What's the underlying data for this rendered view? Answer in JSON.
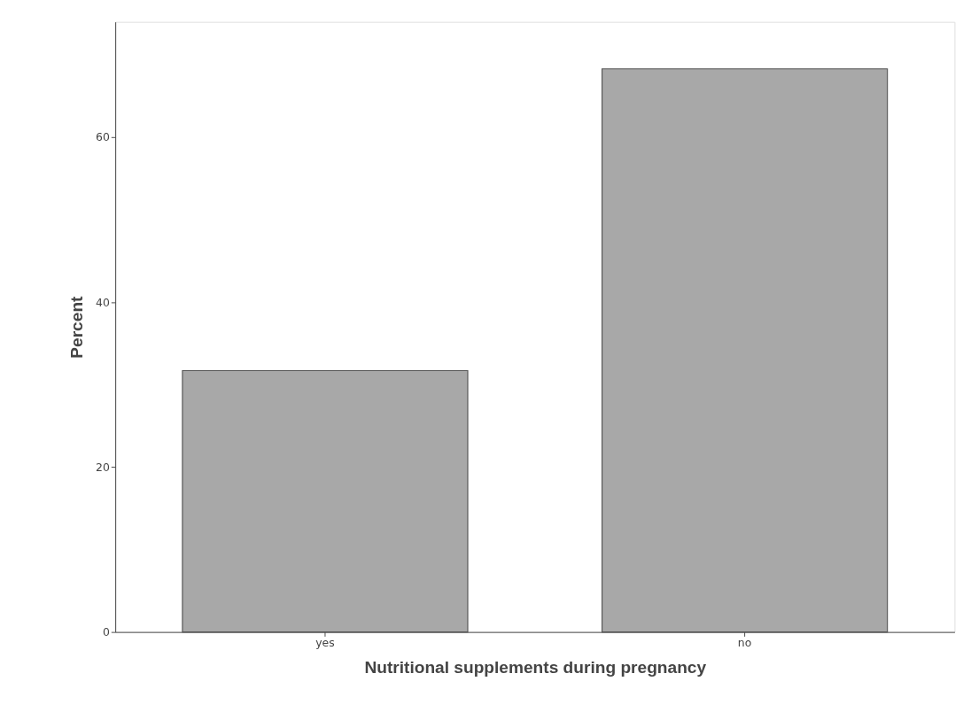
{
  "chart_data": {
    "type": "bar",
    "xlabel": "Nutritional supplements during pregnancy",
    "ylabel": "Percent",
    "categories": [
      "yes",
      "no"
    ],
    "values": [
      31.7,
      68.3
    ],
    "color": "#a8a8a8",
    "ylim": [
      0,
      74
    ],
    "yticks": [
      0,
      20,
      40,
      60
    ],
    "grid": false
  }
}
